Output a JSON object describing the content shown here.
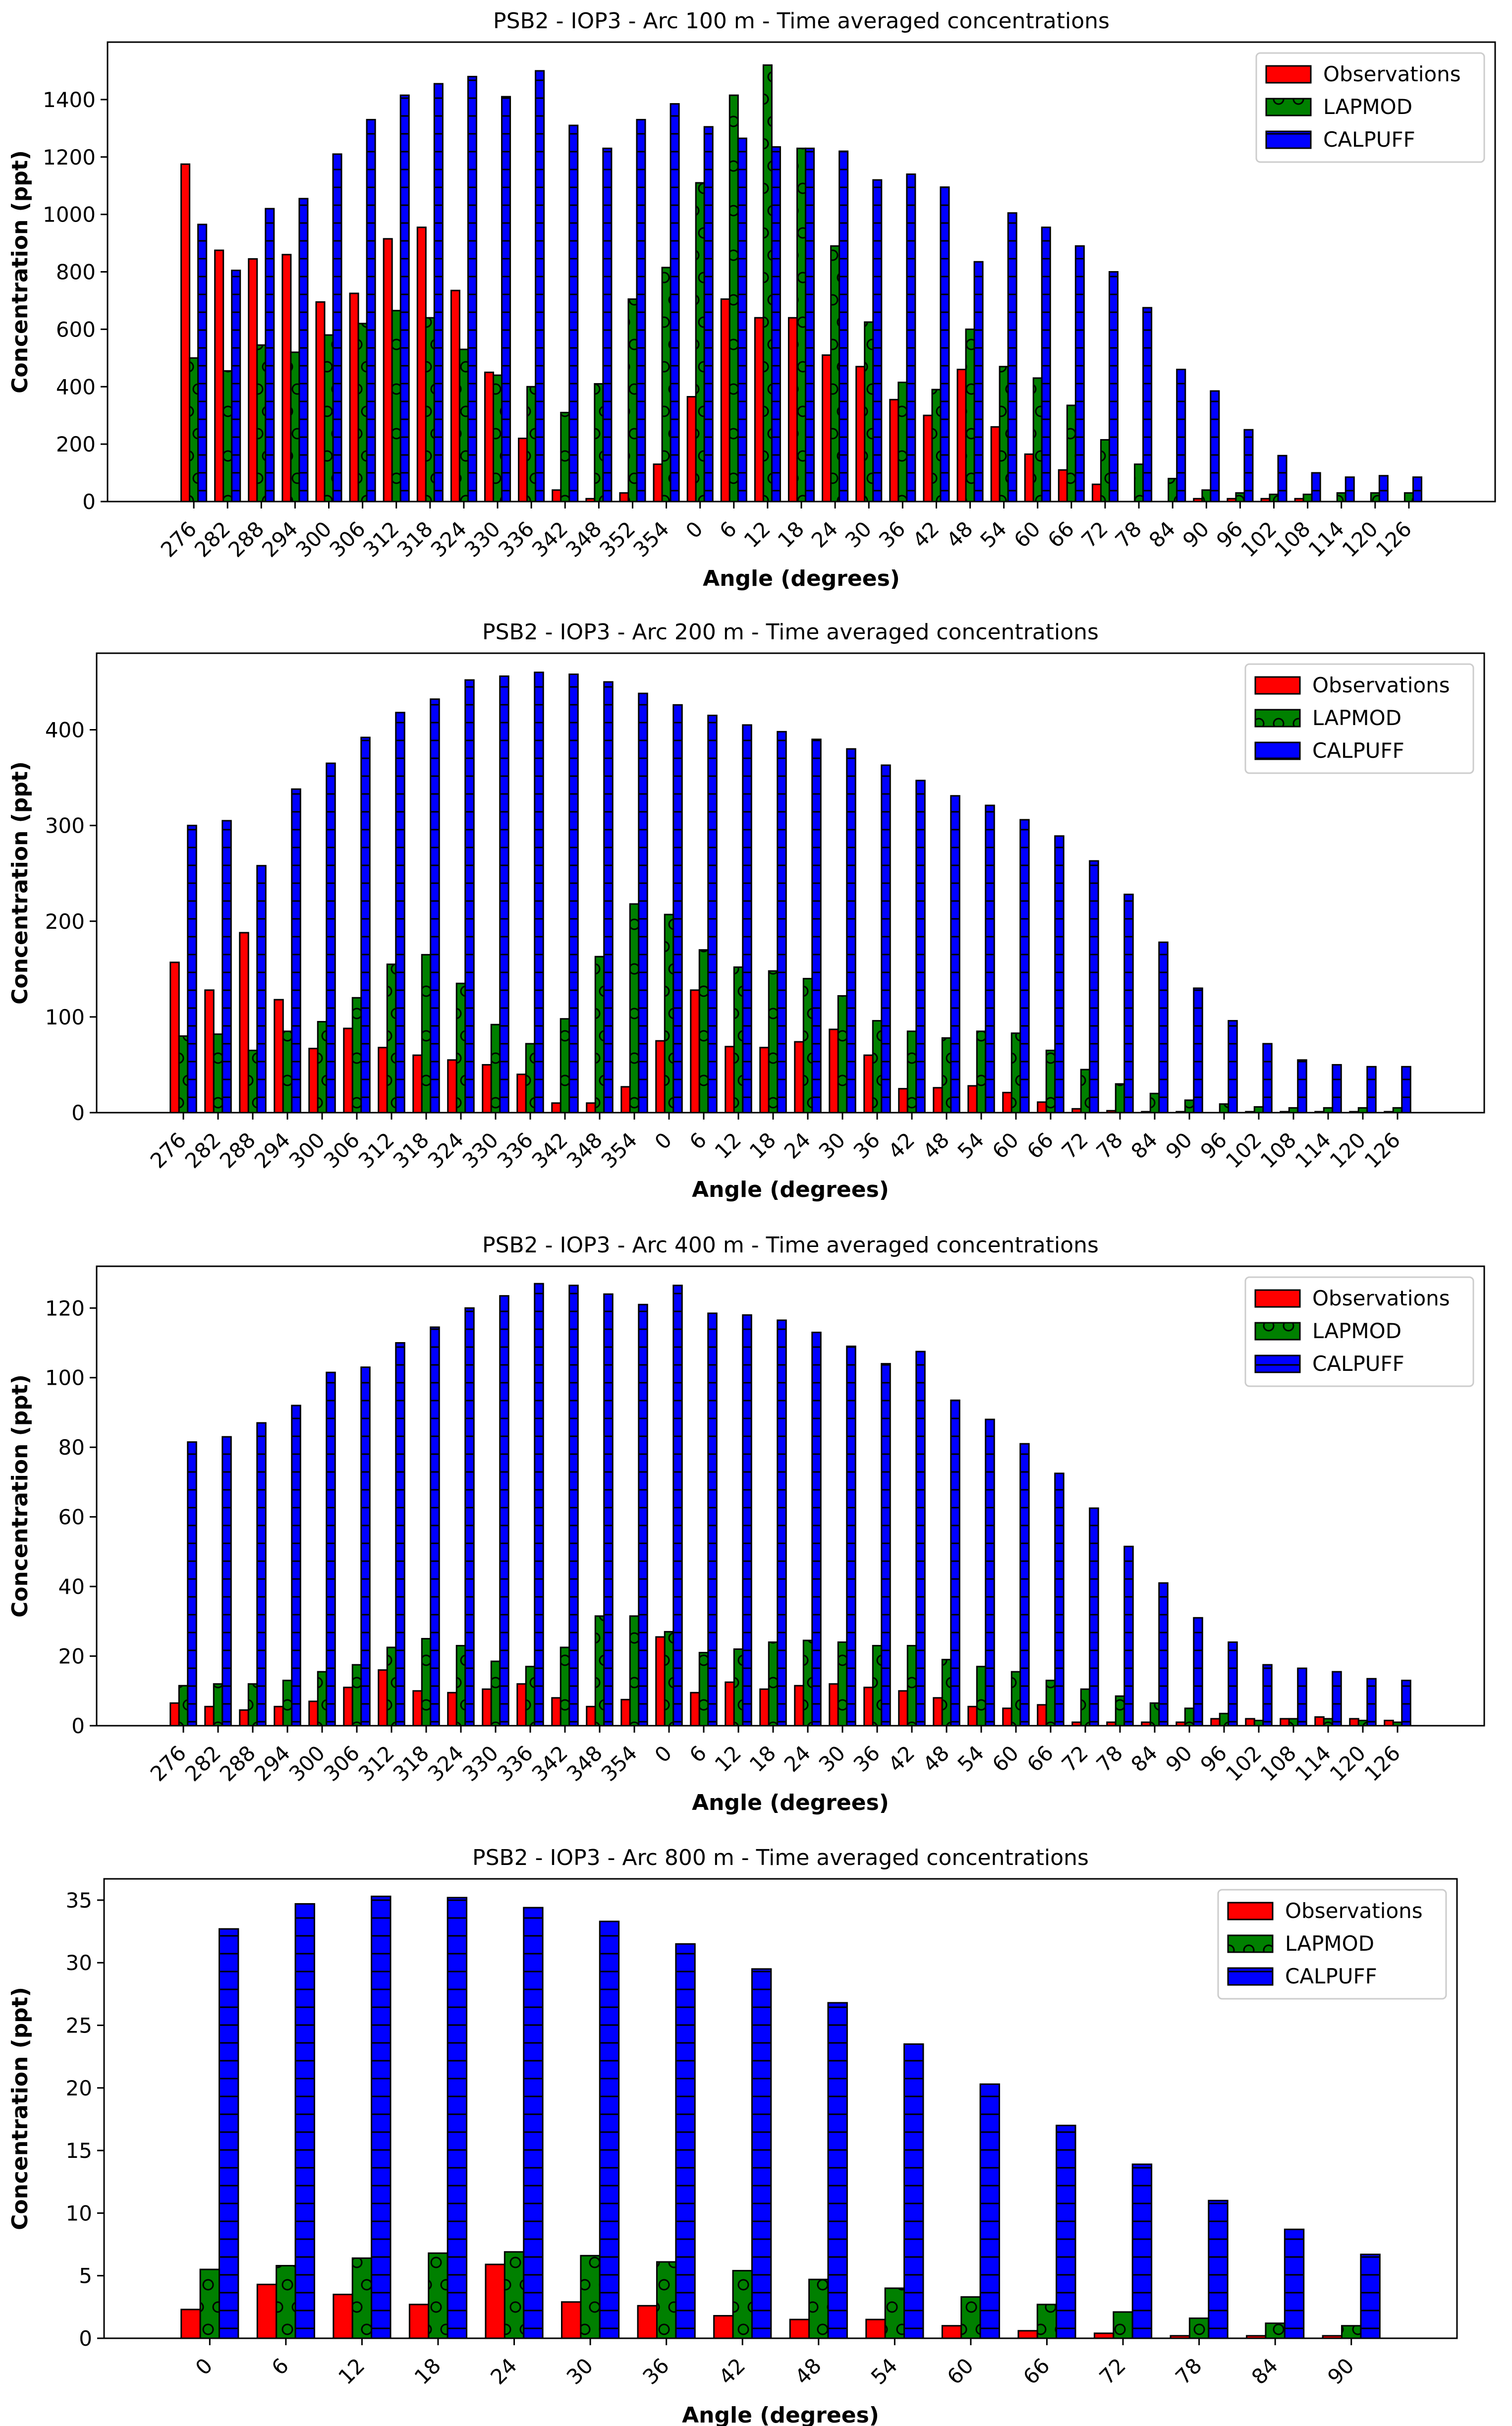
{
  "chart_data": [
    {
      "type": "bar",
      "title": "PSB2 - IOP3 - Arc 100 m - Time averaged concentrations",
      "xlabel": "Angle (degrees)",
      "ylabel": "Concentration (ppt)",
      "ylim": [
        0,
        1600
      ],
      "yticks": [
        0,
        200,
        400,
        600,
        800,
        1000,
        1200,
        1400
      ],
      "legend_position": "top-right",
      "categories": [
        "276",
        "282",
        "288",
        "294",
        "300",
        "306",
        "312",
        "318",
        "324",
        "330",
        "336",
        "342",
        "348",
        "352",
        "354",
        "0",
        "6",
        "12",
        "18",
        "24",
        "30",
        "36",
        "42",
        "48",
        "54",
        "60",
        "66",
        "72",
        "78",
        "84",
        "90",
        "96",
        "102",
        "108",
        "114",
        "120",
        "126"
      ],
      "series": [
        {
          "name": "Observations",
          "color": "#ff0000",
          "values": [
            1175,
            875,
            845,
            860,
            695,
            725,
            915,
            955,
            735,
            450,
            220,
            40,
            10,
            30,
            130,
            365,
            705,
            640,
            640,
            510,
            470,
            355,
            300,
            460,
            260,
            165,
            110,
            60,
            0,
            0,
            10,
            10,
            10,
            10,
            0,
            0,
            0
          ]
        },
        {
          "name": "LAPMOD",
          "color": "#008000",
          "values": [
            500,
            455,
            545,
            520,
            580,
            620,
            665,
            640,
            530,
            440,
            400,
            310,
            410,
            705,
            815,
            1110,
            1415,
            1520,
            1230,
            890,
            625,
            415,
            390,
            600,
            470,
            430,
            335,
            215,
            130,
            80,
            40,
            30,
            25,
            25,
            30,
            30,
            30
          ]
        },
        {
          "name": "CALPUFF",
          "color": "#0000ff",
          "values": [
            965,
            805,
            1020,
            1055,
            1210,
            1330,
            1415,
            1455,
            1480,
            1410,
            1500,
            1310,
            1230,
            1330,
            1385,
            1305,
            1265,
            1235,
            1230,
            1220,
            1120,
            1140,
            1095,
            835,
            1005,
            955,
            890,
            800,
            675,
            460,
            385,
            250,
            160,
            100,
            85,
            90,
            85
          ]
        }
      ]
    },
    {
      "type": "bar",
      "title": "PSB2 - IOP3 - Arc 200 m - Time averaged concentrations",
      "xlabel": "Angle (degrees)",
      "ylabel": "Concentration (ppt)",
      "ylim": [
        0,
        480
      ],
      "yticks": [
        0,
        100,
        200,
        300,
        400
      ],
      "legend_position": "top-right",
      "categories": [
        "276",
        "282",
        "288",
        "294",
        "300",
        "306",
        "312",
        "318",
        "324",
        "330",
        "336",
        "342",
        "348",
        "354",
        "0",
        "6",
        "12",
        "18",
        "24",
        "30",
        "36",
        "42",
        "48",
        "54",
        "60",
        "66",
        "72",
        "78",
        "84",
        "90",
        "96",
        "102",
        "108",
        "114",
        "120",
        "126"
      ],
      "series": [
        {
          "name": "Observations",
          "color": "#ff0000",
          "values": [
            157,
            128,
            188,
            118,
            67,
            88,
            68,
            60,
            55,
            50,
            40,
            10,
            10,
            27,
            75,
            128,
            69,
            68,
            74,
            87,
            60,
            25,
            26,
            28,
            21,
            11,
            4,
            2,
            1,
            1,
            0,
            1,
            1,
            1,
            1,
            1
          ]
        },
        {
          "name": "LAPMOD",
          "color": "#008000",
          "values": [
            80,
            82,
            65,
            85,
            95,
            120,
            155,
            165,
            135,
            92,
            72,
            98,
            163,
            218,
            207,
            170,
            152,
            148,
            140,
            122,
            96,
            85,
            78,
            85,
            83,
            65,
            45,
            30,
            20,
            13,
            9,
            6,
            5,
            5,
            5,
            5
          ]
        },
        {
          "name": "CALPUFF",
          "color": "#0000ff",
          "values": [
            300,
            305,
            258,
            338,
            365,
            392,
            418,
            432,
            452,
            456,
            460,
            458,
            450,
            438,
            426,
            415,
            405,
            398,
            390,
            380,
            363,
            347,
            331,
            321,
            306,
            289,
            263,
            228,
            178,
            130,
            96,
            72,
            55,
            50,
            48,
            48
          ]
        }
      ]
    },
    {
      "type": "bar",
      "title": "PSB2 - IOP3 - Arc 400 m - Time averaged concentrations",
      "xlabel": "Angle (degrees)",
      "ylabel": "Concentration (ppt)",
      "ylim": [
        0,
        132
      ],
      "yticks": [
        0,
        20,
        40,
        60,
        80,
        100,
        120
      ],
      "legend_position": "top-right",
      "categories": [
        "276",
        "282",
        "288",
        "294",
        "300",
        "306",
        "312",
        "318",
        "324",
        "330",
        "336",
        "342",
        "348",
        "354",
        "0",
        "6",
        "12",
        "18",
        "24",
        "30",
        "36",
        "42",
        "48",
        "54",
        "60",
        "66",
        "72",
        "78",
        "84",
        "90",
        "96",
        "102",
        "108",
        "114",
        "120",
        "126"
      ],
      "series": [
        {
          "name": "Observations",
          "color": "#ff0000",
          "values": [
            6.5,
            5.5,
            4.5,
            5.5,
            7,
            11,
            16,
            10,
            9.5,
            10.5,
            12,
            8,
            5.5,
            7.5,
            25.5,
            9.5,
            12.5,
            10.5,
            11.5,
            12,
            11,
            10,
            8,
            5.5,
            5,
            6,
            1,
            1,
            1,
            1,
            2,
            2,
            2,
            2.5,
            2,
            1.5
          ]
        },
        {
          "name": "LAPMOD",
          "color": "#008000",
          "values": [
            11.5,
            12,
            12,
            13,
            15.5,
            17.5,
            22.5,
            25,
            23,
            18.5,
            17,
            22.5,
            31.5,
            31.5,
            27,
            21,
            22,
            24,
            24.5,
            24,
            23,
            23,
            19,
            17,
            15.5,
            13,
            10.5,
            8.5,
            6.5,
            5,
            3.5,
            1.5,
            2,
            2,
            1.5,
            1
          ]
        },
        {
          "name": "CALPUFF",
          "color": "#0000ff",
          "values": [
            81.5,
            83,
            87,
            92,
            101.5,
            103,
            110,
            114.5,
            120,
            123.5,
            127,
            126.5,
            124,
            121,
            126.5,
            118.5,
            118,
            116.5,
            113,
            109,
            104,
            107.5,
            93.5,
            88,
            81,
            72.5,
            62.5,
            51.5,
            41,
            31,
            24,
            17.5,
            16.5,
            15.5,
            13.5,
            13
          ]
        }
      ]
    },
    {
      "type": "bar",
      "title": "PSB2 - IOP3 - Arc 800 m - Time averaged concentrations",
      "xlabel": "Angle (degrees)",
      "ylabel": "Concentration (ppt)",
      "ylim": [
        0,
        36.7
      ],
      "yticks": [
        0,
        5,
        10,
        15,
        20,
        25,
        30,
        35
      ],
      "legend_position": "top-right",
      "categories": [
        "0",
        "6",
        "12",
        "18",
        "24",
        "30",
        "36",
        "42",
        "48",
        "54",
        "60",
        "66",
        "72",
        "78",
        "84",
        "90"
      ],
      "series": [
        {
          "name": "Observations",
          "color": "#ff0000",
          "values": [
            2.3,
            4.3,
            3.5,
            2.7,
            5.9,
            2.9,
            2.6,
            1.8,
            1.5,
            1.5,
            1.0,
            0.6,
            0.4,
            0.2,
            0.2,
            0.2
          ]
        },
        {
          "name": "LAPMOD",
          "color": "#008000",
          "values": [
            5.5,
            5.8,
            6.4,
            6.8,
            6.9,
            6.6,
            6.1,
            5.4,
            4.7,
            4.0,
            3.3,
            2.7,
            2.1,
            1.6,
            1.2,
            1.0
          ]
        },
        {
          "name": "CALPUFF",
          "color": "#0000ff",
          "values": [
            32.7,
            34.7,
            35.3,
            35.2,
            34.4,
            33.3,
            31.5,
            29.5,
            26.8,
            23.5,
            20.3,
            17.0,
            13.9,
            11.0,
            8.7,
            6.7
          ]
        }
      ]
    }
  ]
}
